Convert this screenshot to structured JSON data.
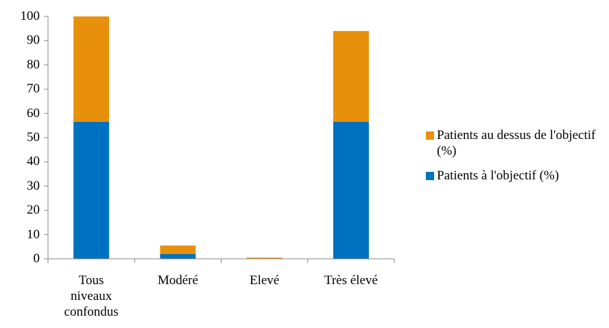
{
  "chart_data": {
    "type": "stacked-bar",
    "categories": [
      "Tous\nniveaux\nconfondus",
      "Modéré",
      "Elevé",
      "Très élevé"
    ],
    "series": [
      {
        "name": "Patients à l'objectif (%)",
        "color": "#0070c0",
        "values": [
          56.5,
          2,
          0,
          56.5
        ]
      },
      {
        "name": "Patients au dessus de l'objectif (%)",
        "color": "#e8900c",
        "values": [
          43.5,
          3.5,
          0.5,
          37.5
        ]
      }
    ],
    "ylim": [
      0,
      100
    ],
    "yticks": [
      0,
      10,
      20,
      30,
      40,
      50,
      60,
      70,
      80,
      90,
      100
    ],
    "legend": "right"
  }
}
